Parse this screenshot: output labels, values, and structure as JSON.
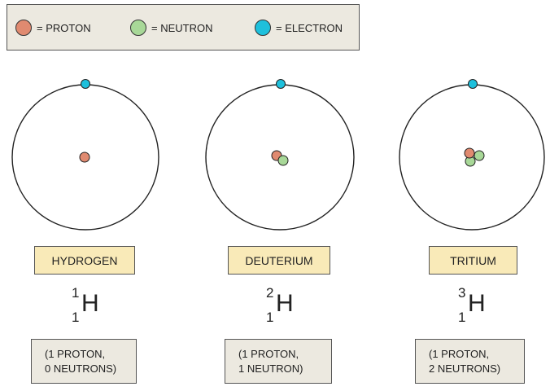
{
  "colors": {
    "proton": "#e08a70",
    "neutron": "#a8d898",
    "electron": "#1ec0dc",
    "legend_bg": "#ece9e0",
    "label_bg": "#f9eab8"
  },
  "legend": [
    {
      "label": "= PROTON",
      "color": "#e08a70"
    },
    {
      "label": "= NEUTRON",
      "color": "#a8d898"
    },
    {
      "label": "= ELECTRON",
      "color": "#1ec0dc"
    }
  ],
  "isotopes": [
    {
      "name": "HYDROGEN",
      "mass_number": "1",
      "atomic_number": "1",
      "symbol": "H",
      "protons": 1,
      "neutrons": 0,
      "info_line1": "(1 PROTON,",
      "info_line2": "0 NEUTRONS)"
    },
    {
      "name": "DEUTERIUM",
      "mass_number": "2",
      "atomic_number": "1",
      "symbol": "H",
      "protons": 1,
      "neutrons": 1,
      "info_line1": "(1 PROTON,",
      "info_line2": "1 NEUTRON)"
    },
    {
      "name": "TRITIUM",
      "mass_number": "3",
      "atomic_number": "1",
      "symbol": "H",
      "protons": 1,
      "neutrons": 2,
      "info_line1": "(1 PROTON,",
      "info_line2": "2 NEUTRONS)"
    }
  ]
}
